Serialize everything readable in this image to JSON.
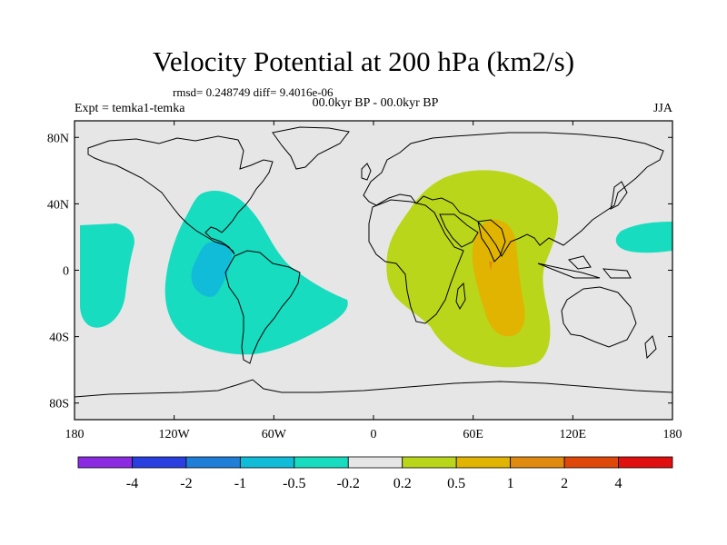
{
  "title": "Velocity Potential at 200 hPa (km2/s)",
  "stats": "rmsd= 0.248749 diff= 9.4016e-06",
  "period": "00.0kyr BP - 00.0kyr BP",
  "experiment": "Expt = temka1-temka",
  "season": "JJA",
  "map": {
    "projection": "cylindrical equidistant",
    "lon_range": [
      -180,
      180
    ],
    "lat_range": [
      -90,
      90
    ],
    "lat_ticks": [
      {
        "value": 80,
        "label": "80N"
      },
      {
        "value": 40,
        "label": "40N"
      },
      {
        "value": 0,
        "label": "0"
      },
      {
        "value": -40,
        "label": "40S"
      },
      {
        "value": -80,
        "label": "80S"
      }
    ],
    "lon_ticks": [
      {
        "value": -180,
        "label": "180"
      },
      {
        "value": -120,
        "label": "120W"
      },
      {
        "value": -60,
        "label": "60W"
      },
      {
        "value": 0,
        "label": "0"
      },
      {
        "value": 60,
        "label": "60E"
      },
      {
        "value": 120,
        "label": "120E"
      },
      {
        "value": 180,
        "label": "180"
      }
    ],
    "background_color": "#e6e6e6",
    "coastline_color": "#000000"
  },
  "colorbar": {
    "colors": [
      "#8a2be2",
      "#2a3fe0",
      "#1f7fd8",
      "#10bcd8",
      "#17dcc0",
      "#e6e6e6",
      "#b9d61a",
      "#e0b400",
      "#e08a10",
      "#e0480a",
      "#e01010"
    ],
    "labels": [
      "-4",
      "-2",
      "-1",
      "-0.5",
      "-0.2",
      "0.2",
      "0.5",
      "1",
      "2",
      "4"
    ]
  },
  "field_colors": {
    "neg_weak": "#17dcc0",
    "neg_moderate": "#10bcd8",
    "pos_weak": "#b9d61a",
    "pos_moderate": "#e0b400",
    "pos_strong": "#e08a10"
  }
}
